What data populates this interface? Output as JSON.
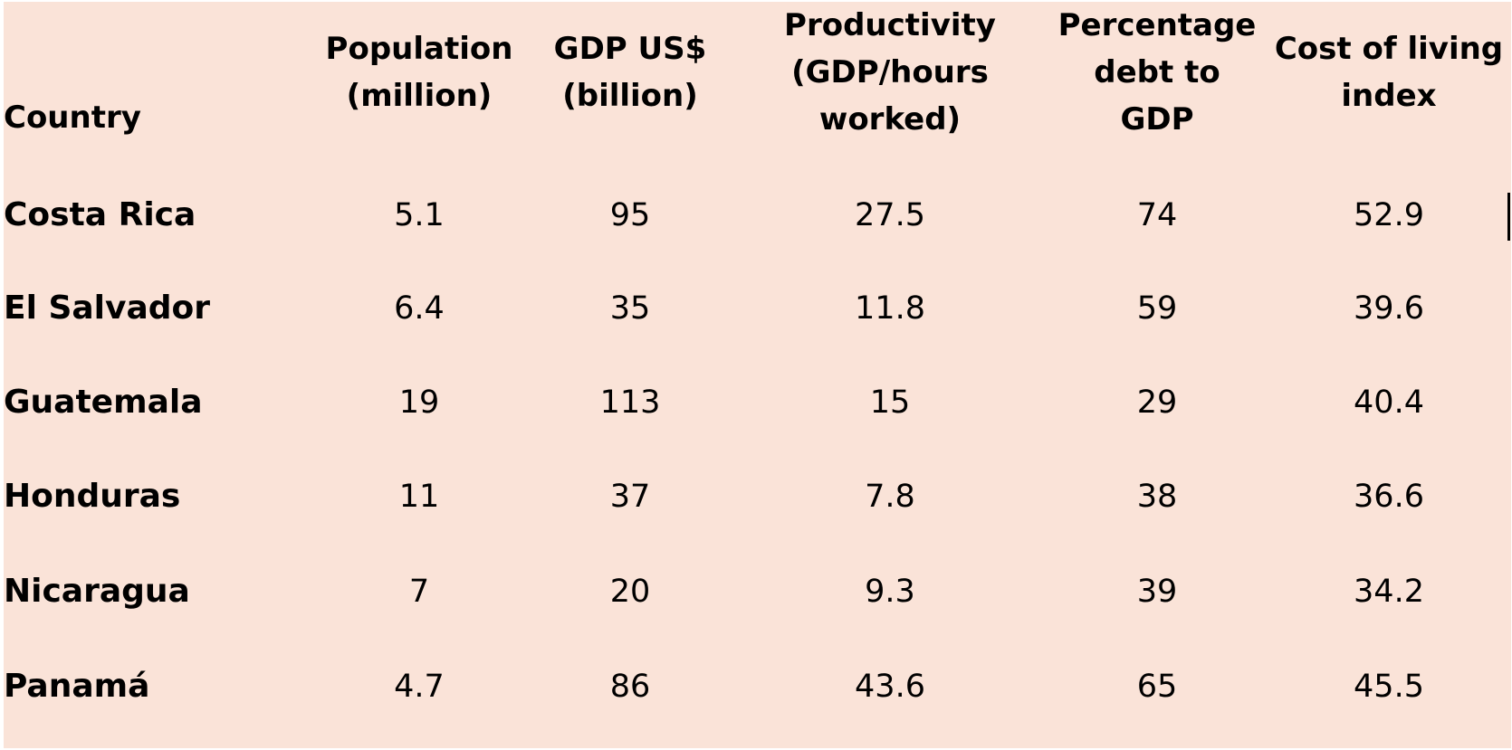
{
  "table": {
    "headers": {
      "country": [
        "Country"
      ],
      "population": [
        "Population",
        "(million)"
      ],
      "gdp": [
        "GDP US$",
        "(billion)"
      ],
      "productivity": [
        "Productivity",
        "(GDP/hours",
        "worked)"
      ],
      "debt": [
        "Percentage",
        "debt to",
        "GDP"
      ],
      "cost": [
        "Cost of living",
        "index"
      ]
    },
    "rows": [
      {
        "country": "Costa Rica",
        "population": "5.1",
        "gdp": "95",
        "productivity": "27.5",
        "debt": "74",
        "cost": "52.9"
      },
      {
        "country": "El Salvador",
        "population": "6.4",
        "gdp": "35",
        "productivity": "11.8",
        "debt": "59",
        "cost": "39.6"
      },
      {
        "country": "Guatemala",
        "population": "19",
        "gdp": "113",
        "productivity": "15",
        "debt": "29",
        "cost": "40.4"
      },
      {
        "country": "Honduras",
        "population": "11",
        "gdp": "37",
        "productivity": "7.8",
        "debt": "38",
        "cost": "36.6"
      },
      {
        "country": "Nicaragua",
        "population": "7",
        "gdp": "20",
        "productivity": "9.3",
        "debt": "39",
        "cost": "34.2"
      },
      {
        "country": "Panamá",
        "population": "4.7",
        "gdp": "86",
        "productivity": "43.6",
        "debt": "65",
        "cost": "45.5"
      }
    ]
  },
  "colors": {
    "background": "#fae3d8",
    "text": "#000000"
  }
}
